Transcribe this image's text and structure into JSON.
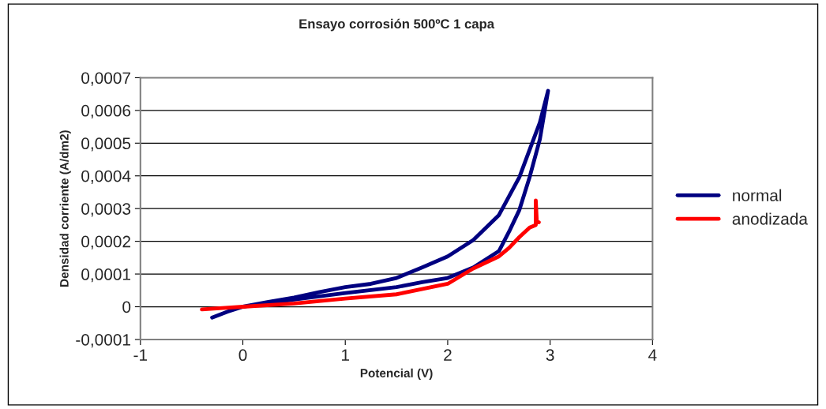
{
  "chart_data": {
    "type": "line",
    "title": "Ensayo corrosión 500ºC 1 capa",
    "xlabel": "Potencial (V)",
    "ylabel": "Densidad corriente (A/dm2)",
    "xlim": [
      -1,
      4
    ],
    "xticks": [
      -1,
      0,
      1,
      2,
      3,
      4
    ],
    "ylim": [
      -0.0001,
      0.0007
    ],
    "yticks": [
      {
        "value": -0.0001,
        "label": "-0,0001"
      },
      {
        "value": 0,
        "label": "0"
      },
      {
        "value": 0.0001,
        "label": "0,0001"
      },
      {
        "value": 0.0002,
        "label": "0,0002"
      },
      {
        "value": 0.0003,
        "label": "0,0003"
      },
      {
        "value": 0.0004,
        "label": "0,0004"
      },
      {
        "value": 0.0005,
        "label": "0,0005"
      },
      {
        "value": 0.0006,
        "label": "0,0006"
      },
      {
        "value": 0.0007,
        "label": "0,0007"
      }
    ],
    "grid": "y",
    "legend": "right",
    "marker": "none",
    "line_style": "solid",
    "series": [
      {
        "name": "normal",
        "color": "#000080",
        "x": [
          -0.3,
          -0.15,
          0,
          0.25,
          0.5,
          0.75,
          1,
          1.25,
          1.5,
          1.75,
          2,
          2.25,
          2.5,
          2.6,
          2.7,
          2.8,
          2.9,
          2.98,
          2.9,
          2.8,
          2.7,
          2.6,
          2.5,
          2.25,
          2,
          1.75,
          1.5,
          1,
          0.5,
          0.1
        ],
        "values": [
          -3.3e-05,
          -1.5e-05,
          0,
          1.5e-05,
          2.8e-05,
          4.5e-05,
          6e-05,
          7e-05,
          8.8e-05,
          0.00012,
          0.000154,
          0.000204,
          0.00028,
          0.000338,
          0.000396,
          0.00048,
          0.000563,
          0.00066,
          0.000512,
          0.000396,
          0.000296,
          0.00023,
          0.00017,
          0.00012,
          8.8e-05,
          7.5e-05,
          6e-05,
          4.2e-05,
          2.2e-05,
          4e-06
        ]
      },
      {
        "name": "anodizada",
        "color": "#ff0000",
        "x": [
          -0.4,
          -0.2,
          0,
          0.5,
          1,
          1.5,
          2,
          2.25,
          2.5,
          2.6,
          2.7,
          2.8,
          2.86,
          2.86,
          2.87,
          2.89
        ],
        "values": [
          -8e-06,
          -4e-06,
          0,
          1e-05,
          2.5e-05,
          3.8e-05,
          7e-05,
          0.000117,
          0.000154,
          0.00018,
          0.000213,
          0.000242,
          0.00025,
          0.000325,
          0.00026,
          0.000258
        ]
      }
    ]
  }
}
